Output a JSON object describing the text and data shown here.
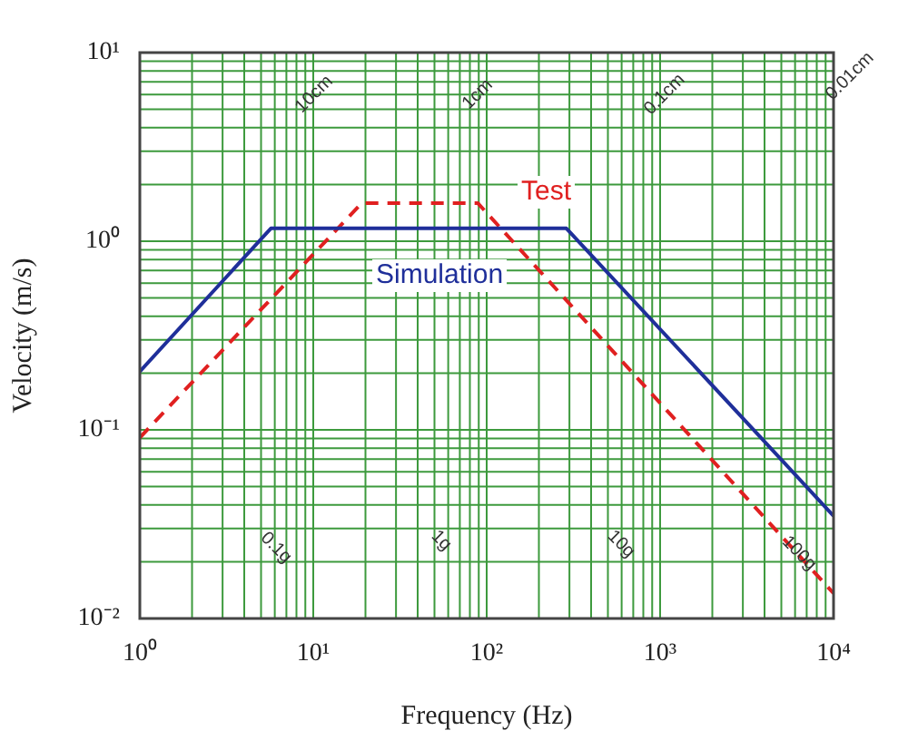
{
  "chart_data": {
    "type": "line",
    "xlabel": "Frequency (Hz)",
    "ylabel": "Velocity (m/s)",
    "log": "xy",
    "grid": true,
    "legend": false,
    "marker": "none",
    "xlim": [
      1,
      10000
    ],
    "xticks": [
      {
        "value": 1,
        "label": "10⁰"
      },
      {
        "value": 10,
        "label": "10¹"
      },
      {
        "value": 100,
        "label": "10²"
      },
      {
        "value": 1000,
        "label": "10³"
      },
      {
        "value": 10000,
        "label": "10⁴"
      }
    ],
    "ylim": [
      0.01,
      10
    ],
    "yticks": [
      {
        "value": 0.01,
        "label": "10⁻²"
      },
      {
        "value": 0.1,
        "label": "10⁻¹"
      },
      {
        "value": 1,
        "label": "10⁰"
      },
      {
        "value": 10,
        "label": "10¹"
      }
    ],
    "series": [
      {
        "name": "Simulation",
        "color": "#1f2f9a",
        "line_style": "solid",
        "x": [
          1,
          5.7,
          288,
          10000
        ],
        "values": [
          0.204,
          1.17,
          1.17,
          0.035
        ]
      },
      {
        "name": "Test",
        "color": "#e02020",
        "line_style": "dashed",
        "x": [
          1,
          19,
          89,
          10000
        ],
        "values": [
          0.091,
          1.59,
          1.59,
          0.0136
        ]
      }
    ],
    "annotations": [
      "10cm",
      "1cm",
      "0.1cm",
      "0.01cm",
      "0.1g",
      "1g",
      "10g",
      "100g"
    ]
  }
}
